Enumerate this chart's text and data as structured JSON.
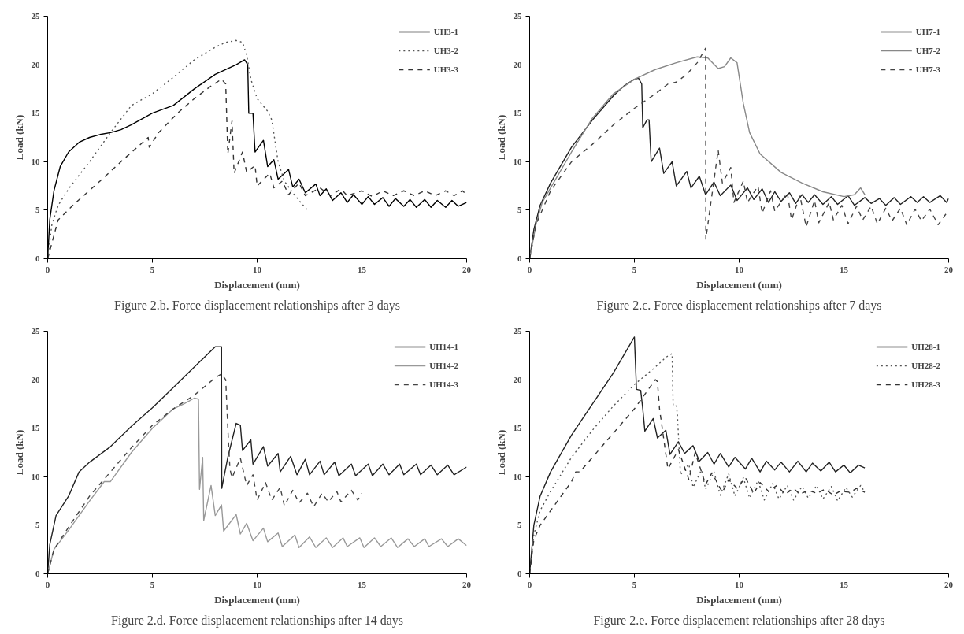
{
  "chart_data": [
    {
      "type": "line",
      "xlabel": "Displacement (mm)",
      "ylabel": "Load (kN)",
      "xlim": [
        0,
        20
      ],
      "ylim": [
        0,
        25
      ],
      "xticks": [
        0,
        5,
        10,
        15,
        20
      ],
      "yticks": [
        0,
        5,
        10,
        15,
        20,
        25
      ],
      "grid": false,
      "legend": "top right",
      "marker": "none",
      "annotations": [
        "Figure 2.b. Force displacement relationships after 3 days"
      ],
      "series": [
        {
          "name": "UH3-1",
          "color": "#000000",
          "line_style": "solid",
          "x": [
            0,
            0.1,
            0.3,
            0.6,
            1,
            1.5,
            2,
            2.5,
            3,
            3.5,
            4,
            5,
            6,
            7,
            8,
            9,
            9.4,
            9.55,
            9.6,
            9.8,
            9.9,
            10.3,
            10.5,
            10.8,
            11.0,
            11.5,
            11.7,
            12.0,
            12.3,
            12.8,
            13.0,
            13.3,
            13.6,
            14.0,
            14.3,
            14.6,
            15.0,
            15.3,
            15.6,
            16.0,
            16.3,
            16.6,
            17.0,
            17.3,
            17.6,
            18.0,
            18.3,
            18.6,
            19.0,
            19.3,
            19.6,
            20
          ],
          "values": [
            0,
            4,
            7,
            9.5,
            11,
            12,
            12.5,
            12.8,
            13,
            13.3,
            13.8,
            15,
            15.8,
            17.5,
            19,
            20,
            20.5,
            20,
            15,
            15,
            11,
            12.2,
            9.5,
            10.2,
            8.2,
            9.2,
            7.4,
            8.2,
            6.8,
            7.7,
            6.5,
            7.2,
            6,
            6.8,
            5.8,
            6.6,
            5.6,
            6.4,
            5.6,
            6.3,
            5.4,
            6.2,
            5.4,
            6.1,
            5.3,
            6.1,
            5.3,
            6,
            5.3,
            6,
            5.4,
            5.8
          ]
        },
        {
          "name": "UH3-2",
          "color": "#555555",
          "line_style": "dotted",
          "x": [
            0,
            0.2,
            0.5,
            1,
            2,
            3,
            4,
            5,
            6,
            7,
            8,
            8.5,
            9,
            9.3,
            9.5,
            9.7,
            10,
            10.5,
            10.7,
            11,
            11.3,
            11.7,
            12,
            12.4
          ],
          "values": [
            0,
            3.5,
            5.5,
            7.2,
            10,
            13,
            15.8,
            17,
            18.7,
            20.5,
            21.8,
            22.3,
            22.5,
            22.3,
            21,
            18.5,
            16.5,
            15.2,
            14.3,
            10,
            8,
            6.8,
            6,
            5
          ]
        },
        {
          "name": "UH3-3",
          "color": "#333333",
          "line_style": "dashed",
          "x": [
            0,
            0.5,
            1.2,
            2.5,
            3.5,
            4.8,
            4.85,
            5.3,
            6.2,
            7,
            7.8,
            8.3,
            8.5,
            8.6,
            8.8,
            8.9,
            9.3,
            9.5,
            9.9,
            10,
            10.6,
            10.8,
            11.2,
            11.5,
            12,
            12.3,
            13,
            13.5,
            14,
            14.3,
            15,
            15.5,
            16,
            16.5,
            17,
            17.5,
            18,
            18.5,
            19,
            19.4,
            19.8,
            20
          ],
          "values": [
            0,
            4,
            5.5,
            8,
            10,
            12.5,
            11.5,
            13,
            15,
            16.5,
            17.8,
            18.5,
            18,
            10.8,
            14.2,
            8.8,
            11,
            8.9,
            9.6,
            7.5,
            8.8,
            7.3,
            8,
            6.6,
            7.8,
            6.5,
            7.3,
            6.5,
            7.2,
            6.5,
            7,
            6.4,
            7,
            6.5,
            7,
            6.5,
            7,
            6.5,
            7,
            6.5,
            7,
            6.6
          ]
        }
      ]
    },
    {
      "type": "line",
      "xlabel": "Displacement (mm)",
      "ylabel": "Load (kN)",
      "xlim": [
        0,
        20
      ],
      "ylim": [
        0,
        25
      ],
      "xticks": [
        0,
        5,
        10,
        15,
        20
      ],
      "yticks": [
        0,
        5,
        10,
        15,
        20,
        25
      ],
      "grid": false,
      "legend": "top right",
      "marker": "none",
      "annotations": [
        "Figure 2.c. Force displacement relationships after 7 days"
      ],
      "series": [
        {
          "name": "UH7-1",
          "color": "#222222",
          "line_style": "solid",
          "x": [
            0,
            0.2,
            0.5,
            1,
            2,
            3,
            4,
            4.5,
            5,
            5.2,
            5.35,
            5.4,
            5.6,
            5.7,
            5.8,
            6.2,
            6.4,
            6.8,
            7.0,
            7.5,
            7.7,
            8.1,
            8.4,
            8.8,
            9.1,
            9.6,
            9.9,
            10.4,
            10.7,
            11.1,
            11.4,
            11.7,
            12.0,
            12.4,
            12.7,
            13.0,
            13.3,
            13.6,
            14.0,
            14.4,
            14.7,
            15.2,
            15.5,
            16.0,
            16.3,
            16.7,
            17.0,
            17.4,
            17.7,
            18.2,
            18.5,
            18.8,
            19.1,
            19.6,
            19.9,
            20
          ],
          "values": [
            0,
            3,
            5.5,
            7.8,
            11.5,
            14.3,
            16.8,
            17.8,
            18.5,
            18.6,
            18,
            13.5,
            14.3,
            14.3,
            10,
            11.4,
            8.8,
            10,
            7.5,
            9,
            7.3,
            8.5,
            6.6,
            7.9,
            6.5,
            7.6,
            6,
            7.3,
            6.1,
            7.2,
            5.8,
            6.9,
            5.9,
            6.8,
            5.7,
            6.6,
            5.8,
            6.6,
            5.6,
            6.4,
            5.6,
            6.5,
            5.5,
            6.3,
            5.7,
            6.2,
            5.5,
            6.3,
            5.6,
            6.4,
            5.8,
            6.4,
            5.8,
            6.5,
            5.8,
            6.2
          ]
        },
        {
          "name": "UH7-2",
          "color": "#888888",
          "line_style": "solid",
          "x": [
            0,
            0.3,
            0.6,
            1,
            2,
            3,
            4,
            5,
            6,
            7,
            8,
            8.5,
            9,
            9.3,
            9.6,
            9.9,
            10.2,
            10.5,
            11,
            12,
            13,
            14,
            15,
            15.5,
            15.8,
            16
          ],
          "values": [
            0,
            3.5,
            5.8,
            7.3,
            11,
            14.5,
            17,
            18.5,
            19.5,
            20.2,
            20.8,
            20.7,
            19.6,
            19.8,
            20.7,
            20.2,
            16,
            13,
            10.8,
            8.9,
            7.8,
            6.9,
            6.4,
            6.6,
            7.3,
            6.6
          ]
        },
        {
          "name": "UH7-3",
          "color": "#444444",
          "line_style": "dashed",
          "x": [
            0,
            0.3,
            0.7,
            1,
            2,
            3,
            4,
            5,
            6,
            6.6,
            7,
            7.5,
            8,
            8.4,
            8.41,
            8.6,
            9.0,
            9.2,
            9.6,
            9.75,
            10.2,
            10.4,
            10.9,
            11.1,
            11.5,
            11.7,
            12.3,
            12.5,
            12.9,
            13.2,
            13.6,
            13.8,
            14.3,
            14.5,
            14.9,
            15.2,
            15.6,
            15.9,
            16.3,
            16.6,
            17,
            17.3,
            17.7,
            18,
            18.4,
            18.7,
            19.1,
            19.5,
            20
          ],
          "values": [
            0,
            3.5,
            5.5,
            7,
            10,
            11.8,
            13.8,
            15.5,
            17,
            18,
            18.2,
            19,
            20.2,
            21.7,
            2,
            5,
            11.2,
            7.8,
            9.4,
            5.8,
            8,
            5.8,
            7.5,
            4.7,
            7,
            4.9,
            6.8,
            4,
            6.5,
            3.3,
            6,
            3.7,
            5.8,
            4,
            5.5,
            3.6,
            5.4,
            4,
            5.4,
            3.6,
            5.2,
            3.9,
            5.2,
            3.5,
            5.1,
            3.9,
            5.1,
            3.5,
            5
          ]
        }
      ]
    },
    {
      "type": "line",
      "xlabel": "Displacement (mm)",
      "ylabel": "Load (kN)",
      "xlim": [
        0,
        20
      ],
      "ylim": [
        0,
        25
      ],
      "xticks": [
        0,
        5,
        10,
        15,
        20
      ],
      "yticks": [
        0,
        5,
        10,
        15,
        20,
        25
      ],
      "grid": false,
      "legend": "top right",
      "marker": "none",
      "annotations": [
        "Figure 2.d. Force displacement relationships after 14 days"
      ],
      "series": [
        {
          "name": "UH14-1",
          "color": "#222222",
          "line_style": "solid",
          "x": [
            0,
            0.1,
            0.4,
            1,
            1.5,
            2,
            3,
            4,
            5,
            6,
            7,
            8,
            8.3,
            8.31,
            8.6,
            9.0,
            9.2,
            9.3,
            9.7,
            9.8,
            10.3,
            10.5,
            11,
            11.1,
            11.6,
            11.9,
            12.3,
            12.5,
            13,
            13.2,
            13.7,
            13.9,
            14.5,
            14.7,
            15.3,
            15.5,
            16,
            16.3,
            16.8,
            17,
            17.6,
            17.8,
            18.3,
            18.6,
            19.1,
            19.4,
            20
          ],
          "values": [
            0,
            3,
            6,
            8,
            10.5,
            11.5,
            13.1,
            15.2,
            17.1,
            19.2,
            21.3,
            23.4,
            23.4,
            8.8,
            12,
            15.5,
            15.3,
            12.7,
            13.8,
            11.3,
            13.1,
            11.1,
            12.4,
            10.5,
            12.1,
            10.2,
            11.8,
            10.2,
            11.6,
            10.2,
            11.5,
            10.1,
            11.3,
            10.1,
            11.3,
            10.1,
            11.3,
            10.2,
            11.3,
            10.2,
            11.3,
            10.2,
            11.2,
            10.2,
            11.2,
            10.2,
            11
          ]
        },
        {
          "name": "UH14-2",
          "color": "#999999",
          "line_style": "solid",
          "x": [
            0,
            0.3,
            1,
            2,
            2.7,
            3,
            4,
            5,
            6,
            6.5,
            7,
            7.2,
            7.25,
            7.4,
            7.45,
            7.8,
            8,
            8.3,
            8.4,
            9,
            9.2,
            9.5,
            9.8,
            10.3,
            10.5,
            11,
            11.2,
            11.8,
            12,
            12.5,
            12.8,
            13.3,
            13.6,
            14.1,
            14.3,
            14.9,
            15.1,
            15.6,
            15.9,
            16.4,
            16.7,
            17.2,
            17.5,
            18,
            18.2,
            18.8,
            19.1,
            19.6,
            20
          ],
          "values": [
            0,
            2.5,
            4.5,
            7.5,
            9.5,
            9.5,
            12.5,
            15,
            17,
            17.5,
            18.1,
            18,
            8.7,
            12,
            5.5,
            9.1,
            6,
            7.1,
            4.4,
            6.1,
            4.1,
            5.2,
            3.4,
            4.7,
            3.3,
            4.2,
            2.8,
            4,
            2.7,
            3.8,
            2.7,
            3.7,
            2.7,
            3.7,
            2.8,
            3.7,
            2.7,
            3.7,
            2.8,
            3.7,
            2.7,
            3.6,
            2.8,
            3.6,
            2.8,
            3.6,
            2.8,
            3.6,
            2.9
          ]
        },
        {
          "name": "UH14-3",
          "color": "#444444",
          "line_style": "dashed",
          "x": [
            0,
            0.3,
            1,
            2,
            3,
            4,
            5,
            6,
            7,
            8,
            8.3,
            8.5,
            8.6,
            8.7,
            8.8,
            9.2,
            9.5,
            9.8,
            10,
            10.4,
            10.7,
            11.1,
            11.3,
            11.7,
            12,
            12.4,
            12.7,
            13.1,
            13.4,
            13.8,
            14,
            14.5,
            14.8,
            15
          ],
          "values": [
            0,
            2.5,
            4.8,
            8,
            10.5,
            13,
            15.3,
            17,
            18.4,
            20.2,
            20.6,
            20,
            15,
            10.8,
            9.9,
            11.9,
            9.1,
            10.2,
            7.6,
            9.4,
            7.6,
            8.9,
            7,
            8.6,
            7.3,
            8.3,
            6.9,
            8.3,
            7.4,
            8.5,
            7.4,
            8.6,
            7.6,
            8.3
          ]
        }
      ]
    },
    {
      "type": "line",
      "xlabel": "Displacement (mm)",
      "ylabel": "Load (kN)",
      "xlim": [
        0,
        20
      ],
      "ylim": [
        0,
        25
      ],
      "xticks": [
        0,
        5,
        10,
        15,
        20
      ],
      "yticks": [
        0,
        5,
        10,
        15,
        20,
        25
      ],
      "grid": false,
      "legend": "top right",
      "marker": "none",
      "annotations": [
        "Figure 2.e. Force displacement relationships after 28 days"
      ],
      "series": [
        {
          "name": "UH28-1",
          "color": "#222222",
          "line_style": "solid",
          "x": [
            0,
            0.2,
            0.5,
            1,
            2,
            3,
            4,
            5,
            5.1,
            5.3,
            5.4,
            5.5,
            5.9,
            6.1,
            6.5,
            6.7,
            7.1,
            7.4,
            7.8,
            8.1,
            8.5,
            8.8,
            9.1,
            9.5,
            9.8,
            10.3,
            10.6,
            11,
            11.3,
            11.7,
            12,
            12.4,
            12.8,
            13.2,
            13.5,
            13.9,
            14.3,
            14.6,
            15,
            15.3,
            15.7,
            16
          ],
          "values": [
            0,
            5,
            8,
            10.5,
            14.3,
            17.5,
            20.7,
            24.4,
            19,
            18.9,
            17,
            14.7,
            16,
            14,
            14.8,
            12.3,
            13.6,
            12.4,
            13.2,
            11.6,
            12.5,
            11.3,
            12.4,
            11,
            12,
            10.8,
            11.9,
            10.5,
            11.6,
            10.7,
            11.5,
            10.5,
            11.6,
            10.5,
            11.4,
            10.6,
            11.5,
            10.5,
            11.2,
            10.4,
            11.2,
            10.9
          ]
        },
        {
          "name": "UH28-2",
          "color": "#555555",
          "line_style": "dotted",
          "x": [
            0,
            0.2,
            0.5,
            1,
            2,
            3,
            4,
            5,
            6,
            6.5,
            6.8,
            6.85,
            7.0,
            7.05,
            7.2,
            7.6,
            7.8,
            8.2,
            8.4,
            8.8,
            9.1,
            9.5,
            9.8,
            10.2,
            10.5,
            10.9,
            11.2,
            11.6,
            11.9,
            12.3,
            12.6,
            13,
            13.3,
            13.7,
            14,
            14.4,
            14.7,
            15.1,
            15.4,
            15.8,
            16
          ],
          "values": [
            0,
            4,
            6.5,
            8.5,
            12,
            14.8,
            17.3,
            19.5,
            21.3,
            22.3,
            22.7,
            17.3,
            17.3,
            16.5,
            10.2,
            11.3,
            8.9,
            10.7,
            8.7,
            10.5,
            8.1,
            10.3,
            8,
            9.9,
            7.8,
            9.6,
            7.6,
            9.3,
            7.7,
            9.1,
            7.6,
            9,
            7.8,
            9.1,
            7.7,
            9,
            7.5,
            8.9,
            7.9,
            9.1,
            8.4
          ]
        },
        {
          "name": "UH28-3",
          "color": "#333333",
          "line_style": "dashed",
          "x": [
            0,
            0.2,
            0.5,
            1,
            2,
            2.2,
            2.4,
            3,
            4,
            5,
            5.5,
            6,
            6.1,
            6.2,
            6.6,
            7.1,
            7.6,
            7.9,
            8.4,
            8.7,
            9.2,
            9.5,
            9.9,
            10.3,
            10.7,
            11,
            11.4,
            11.8,
            12.2,
            12.6,
            12.9,
            13.3,
            13.7,
            14.1,
            14.5,
            14.8,
            15.3,
            15.6,
            16
          ],
          "values": [
            0,
            3.5,
            5,
            6.5,
            9.5,
            10.5,
            10.5,
            12,
            14.5,
            17,
            18.5,
            20,
            19.8,
            17,
            10.8,
            12.8,
            9.7,
            12.5,
            9.2,
            10.4,
            8.4,
            9.7,
            8.8,
            9.9,
            8.3,
            9.4,
            8.5,
            9.1,
            8.2,
            8.8,
            8.2,
            8.6,
            8.3,
            8.7,
            8.1,
            8.5,
            8.4,
            8.8,
            8.4
          ]
        }
      ]
    }
  ]
}
